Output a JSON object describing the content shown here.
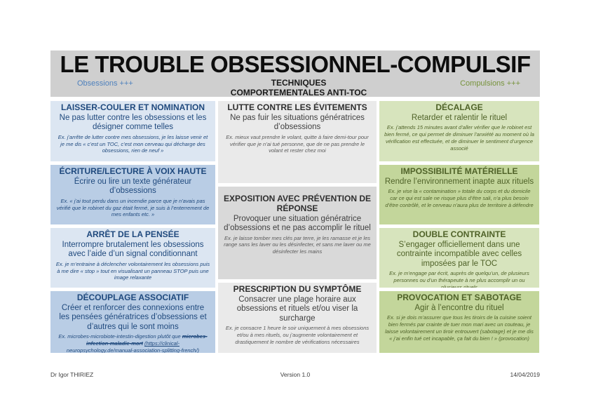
{
  "header": {
    "title": "LE TROUBLE OBSESSIONNEL-COMPULSIF",
    "left_label": "Obsessions +++",
    "center_label": "TECHNIQUES COMPORTEMENTALES ANTI-TOC",
    "right_label": "Compulsions +++"
  },
  "columns": {
    "obsessions": {
      "cells": [
        {
          "title": "LAISSER-COULER ET NOMINATION",
          "subtitle": "Ne pas lutter contre les obsessions et les désigner comme telles",
          "example": "Ex. j’arrête de lutter contre mes obsessions, je les laisse venir et je me dis « c’est un TOC, c’est mon cerveau qui décharge des obsessions, rien de neuf »"
        },
        {
          "title": "ÉCRITURE/LECTURE À VOIX HAUTE",
          "subtitle": "Écrire ou lire un texte générateur d’obsessions",
          "example": "Ex. « j’ai tout perdu dans un incendie parce que je n’avais pas vérifié que le robinet du gaz était fermé, je suis à l’enterrement de mes enfants etc. »"
        },
        {
          "title": "ARRÊT DE LA PENSÉE",
          "subtitle": "Interrompre brutalement les obsessions avec l’aide d’un signal conditionnant",
          "example": "Ex. je m’entraine à déclencher volontairement les obsessions puis à me dire « stop » tout en visualisant un panneau STOP puis une image relaxante"
        },
        {
          "title": "DÉCOUPLAGE ASSOCIATIF",
          "subtitle": "Créer et renforcer des connexions entre les pensées génératrices d’obsessions et d’autres qui le sont moins",
          "example_prefix": "Ex. microbes-microbiote-intestin-digestion plutôt que ",
          "example_strike": "microbes-infection-maladie-mort",
          "example_space": " ",
          "example_link": "(https://clinical-neuropsychology.de/manual-association-splitting-french/)"
        }
      ]
    },
    "techniques": {
      "cells": [
        {
          "title": "LUTTE CONTRE LES ÉVITEMENTS",
          "subtitle": "Ne pas fuir les situations génératrices d’obsessions",
          "example": "Ex. mieux vaut prendre le volant, quitte à faire demi-tour pour vérifier que je n’ai tué personne, que de ne pas prendre le volant et rester chez moi"
        },
        {
          "title": "EXPOSITION AVEC PRÉVENTION DE RÉPONSE",
          "subtitle": "Provoquer une situation génératrice d’obsessions et ne pas accomplir le rituel",
          "example": "Ex. je laisse tomber mes clés par terre, je les ramasse et je les range sans les laver ou les désinfecter, et sans me laver ou me désinfecter les mains"
        },
        {
          "title": "PRESCRIPTION DU SYMPTÔME",
          "subtitle": "Consacrer une plage horaire aux obsessions et rituels et/ou viser la surcharge",
          "example": "Ex. je consacre 1 heure le soir uniquement à mes obsessions et/ou à mes rituels, ou j’augmente volontairement et drastiquement le nombre de vérifications nécessaires"
        }
      ]
    },
    "compulsions": {
      "cells": [
        {
          "title": "DÉCALAGE",
          "subtitle": "Retarder et ralentir le rituel",
          "example": "Ex. j’attends 15 minutes avant d’aller vérifier que le robinet est bien fermé, ce qui permet de diminuer l’anxiété au moment où la vérification est effectuée, et de diminuer le sentiment d’urgence associé"
        },
        {
          "title": "IMPOSSIBILITÉ MATÉRIELLE",
          "subtitle": "Rendre l’environnement inapte aux rituels",
          "example": "Ex. je vise la « contamination » totale du corps et du domicile car ce qui est sale ne risque plus d’être sali, n’a plus besoin d’être contrôlé, et le cerveau n’aura plus de territoire à défendre"
        },
        {
          "title": "DOUBLE CONTRAINTE",
          "subtitle": "S’engager officiellement dans une contrainte incompatible avec celles imposées par le TOC",
          "example": "Ex. je m’engage par écrit, auprès de quelqu’un, de plusieurs personnes ou d’un thérapeute à ne plus accomplir un ou plusieurs rituels"
        },
        {
          "title": "PROVOCATION ET SABOTAGE",
          "subtitle": "Agir à l’encontre du rituel",
          "example": "Ex. si je dois m’assurer que tous les tiroirs de la cuisine soient bien fermés par crainte de tuer mon mari avec un couteau, je laisse volontairement un tiroir entrouvert (sabotage) et je me dis « j’ai enfin tué cet incapable, ça fait du bien ! » (provocation)"
        }
      ]
    }
  },
  "footer": {
    "author": "Dr Igor THIRIEZ",
    "version": "Version 1.0",
    "date": "14/04/2019"
  },
  "colors": {
    "header_band": "#cfcfcf",
    "obsessions_text": "#1f497d",
    "obsessions_label": "#4f81bd",
    "compulsions_text": "#4f6228",
    "compulsions_label": "#77933c",
    "techniques_text": "#404040",
    "cell_blue_light": "#dce6f2",
    "cell_blue_dark": "#b9cde5",
    "cell_gray_light": "#eaeaea",
    "cell_gray_mid": "#d9d9d9",
    "cell_green_light": "#d7e4bd",
    "cell_green_dark": "#c3d69b"
  }
}
